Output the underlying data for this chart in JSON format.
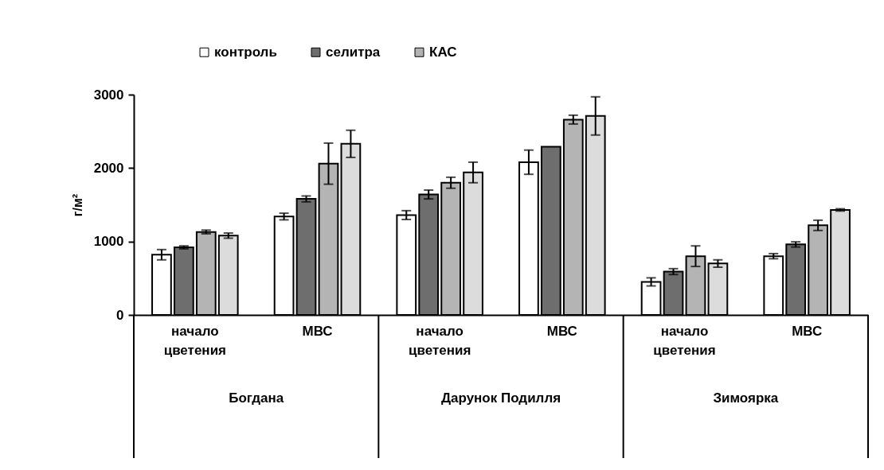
{
  "chart_data": {
    "type": "bar",
    "ylabel": "г/м²",
    "categories": [
      "начало цветения",
      "МВС",
      "начало цветения",
      "МВС",
      "начало цветения",
      "МВС"
    ],
    "annotations": [
      "Богдана",
      "Дарунок  Подилля",
      "Зимоярка"
    ],
    "series": [
      {
        "name": "контроль",
        "color": "#ffffff",
        "values": [
          820,
          1340,
          1360,
          2080,
          450,
          800
        ],
        "errors": [
          70,
          45,
          60,
          165,
          55,
          35
        ]
      },
      {
        "name": "селитра",
        "color": "#6e6e6e",
        "values": [
          920,
          1580,
          1640,
          2290,
          590,
          960
        ],
        "errors": [
          20,
          40,
          60,
          null,
          40,
          35
        ]
      },
      {
        "name": "КАС",
        "color": "#b4b4b4",
        "values": [
          1130,
          2060,
          1800,
          2660,
          800,
          1220
        ],
        "errors": [
          25,
          280,
          75,
          60,
          140,
          70
        ]
      },
      {
        "color": "#dcdcdc",
        "values": [
          1080,
          2330,
          1940,
          2710,
          700,
          1430
        ],
        "errors": [
          35,
          185,
          140,
          260,
          50,
          15
        ]
      }
    ],
    "ylim": [
      0,
      3000
    ],
    "yticks": [
      0,
      1000,
      2000,
      3000
    ],
    "grid": false,
    "legend": "top"
  }
}
